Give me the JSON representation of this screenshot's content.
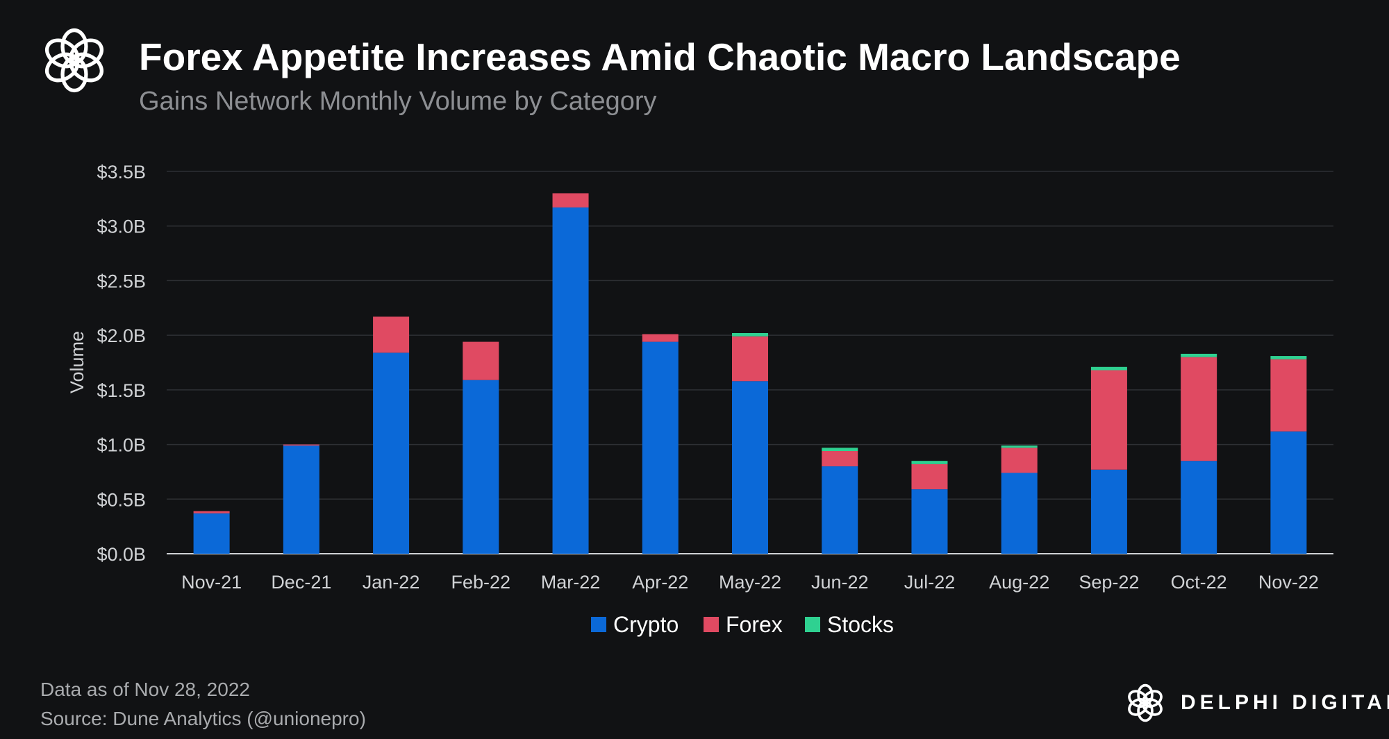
{
  "header": {
    "logo_icon": "knot-flower-icon",
    "title": "Forex Appetite Increases Amid Chaotic Macro Landscape",
    "subtitle": "Gains Network Monthly Volume by Category"
  },
  "chart_data": {
    "type": "bar",
    "stacked": true,
    "ylabel": "Volume",
    "xlabel": "",
    "ylim": [
      0,
      3.5
    ],
    "y_unit": "billion USD",
    "yticks": [
      "$0.0B",
      "$0.5B",
      "$1.0B",
      "$1.5B",
      "$2.0B",
      "$2.5B",
      "$3.0B",
      "$3.5B"
    ],
    "grid": true,
    "legend_position": "bottom-center",
    "categories": [
      "Nov-21",
      "Dec-21",
      "Jan-22",
      "Feb-22",
      "Mar-22",
      "Apr-22",
      "May-22",
      "Jun-22",
      "Jul-22",
      "Aug-22",
      "Sep-22",
      "Oct-22",
      "Nov-22"
    ],
    "series": [
      {
        "name": "Crypto",
        "color": "#0b69d8",
        "values": [
          0.37,
          0.99,
          1.84,
          1.59,
          3.17,
          1.94,
          1.58,
          0.8,
          0.59,
          0.74,
          0.77,
          0.85,
          1.12
        ]
      },
      {
        "name": "Forex",
        "color": "#e04a62",
        "values": [
          0.02,
          0.01,
          0.33,
          0.35,
          0.13,
          0.07,
          0.41,
          0.14,
          0.23,
          0.23,
          0.91,
          0.95,
          0.66
        ]
      },
      {
        "name": "Stocks",
        "color": "#2fd191",
        "values": [
          0.0,
          0.0,
          0.0,
          0.0,
          0.0,
          0.0,
          0.03,
          0.03,
          0.03,
          0.02,
          0.03,
          0.03,
          0.03
        ]
      }
    ]
  },
  "footer": {
    "date_note": "Data as of Nov 28, 2022",
    "source_note": "Source: Dune Analytics  (@unionepro)",
    "brand_icon": "knot-flower-icon",
    "brand_name": "DELPHI DIGITAL"
  },
  "colors": {
    "background": "#111214",
    "grid": "#2e3034",
    "axis_text": "#d0d2d5",
    "subtitle": "#8d8f93"
  }
}
